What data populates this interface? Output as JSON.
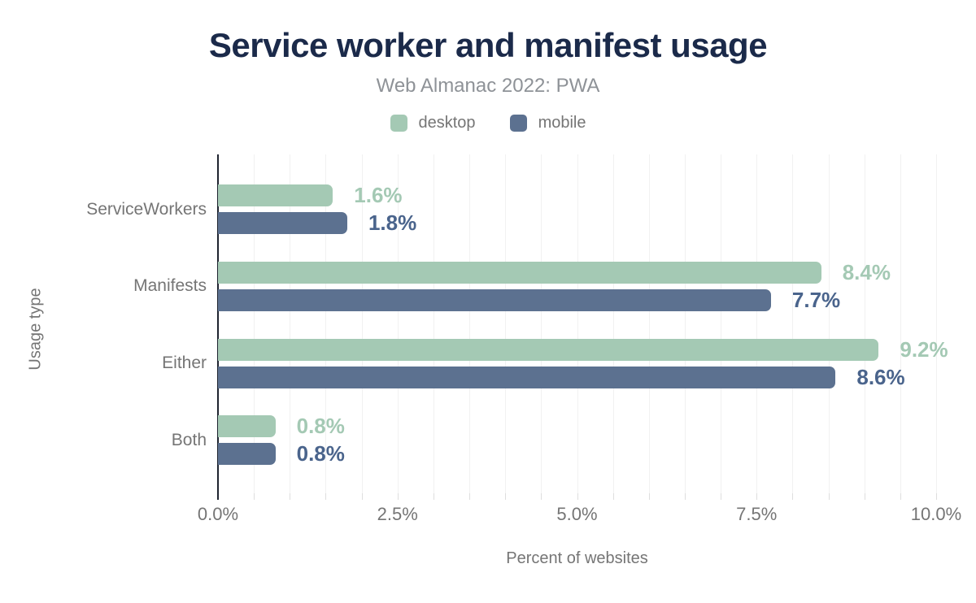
{
  "title": "Service worker and manifest usage",
  "subtitle": "Web Almanac 2022: PWA",
  "colors": {
    "title": "#1b2a4a",
    "subtitle": "#8e9297",
    "axis_text": "#757575",
    "axis_line": "#1f2430",
    "gridline": "#f1f1f1",
    "tick": "#dedede",
    "desktop": "#a4c9b4",
    "mobile": "#5c7190",
    "desktop_label": "#a4c9b4",
    "mobile_label": "#4a648c"
  },
  "chart_data": {
    "type": "bar",
    "orientation": "horizontal",
    "title": "Service worker and manifest usage",
    "subtitle": "Web Almanac 2022: PWA",
    "categories": [
      "ServiceWorkers",
      "Manifests",
      "Either",
      "Both"
    ],
    "series": [
      {
        "name": "desktop",
        "color": "#a4c9b4",
        "label_color": "#a4c9b4",
        "values": [
          1.6,
          8.4,
          9.2,
          0.8
        ],
        "labels": [
          "1.6%",
          "8.4%",
          "9.2%",
          "0.8%"
        ]
      },
      {
        "name": "mobile",
        "color": "#5c7190",
        "label_color": "#4a648c",
        "values": [
          1.8,
          7.7,
          8.6,
          0.8
        ],
        "labels": [
          "1.8%",
          "7.7%",
          "8.6%",
          "0.8%"
        ]
      }
    ],
    "xlabel": "Percent of websites",
    "ylabel": "Usage type",
    "xlim": [
      0,
      10
    ],
    "x_ticks": [
      {
        "value": 0,
        "label": "0.0%"
      },
      {
        "value": 2.5,
        "label": "2.5%"
      },
      {
        "value": 5,
        "label": "5.0%"
      },
      {
        "value": 7.5,
        "label": "7.5%"
      },
      {
        "value": 10,
        "label": "10.0%"
      }
    ],
    "minor_grid_step": 0.5,
    "grid": true,
    "legend_position": "top"
  }
}
